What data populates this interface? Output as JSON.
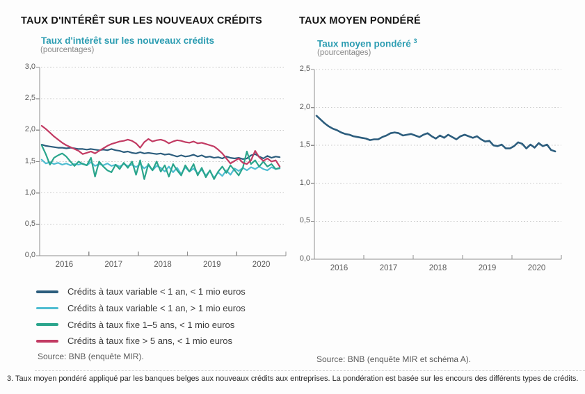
{
  "header": {
    "left_title": "TAUX D'INTÉRÊT SUR LES NOUVEAUX CRÉDITS",
    "right_title": "TAUX MOYEN PONDÉRÉ"
  },
  "left_panel": {
    "subtitle": "Taux d'intérêt sur les nouveaux crédits",
    "unit": "(pourcentages)",
    "source": "Source: BNB (enquête MIR)."
  },
  "right_panel": {
    "subtitle": "Taux moyen pondéré",
    "footnote_ref": "3",
    "unit": "(pourcentages)",
    "source": "Source: BNB (enquête MIR et schéma A)."
  },
  "footnote": "3. Taux moyen pondéré appliqué par les banques belges aux nouveaux crédits aux entreprises. La pondération est basée sur les encours des différents types de crédits.",
  "chart_data": [
    {
      "type": "line",
      "title": "Taux d'intérêt sur les nouveaux crédits",
      "ylabel": "pourcentages",
      "x_unit": "monthly",
      "x_range": "2016-01 to 2020-11",
      "x_years": [
        "2016",
        "2017",
        "2018",
        "2019",
        "2020"
      ],
      "ylim": [
        0,
        3
      ],
      "grid": "dotted-horizontal",
      "legend_position": "below-left",
      "yticks": [
        {
          "label": "3,0",
          "value": 3.0
        },
        {
          "label": "2,5",
          "value": 2.5
        },
        {
          "label": "2,0",
          "value": 2.0
        },
        {
          "label": "1,5",
          "value": 1.5
        },
        {
          "label": "1,0",
          "value": 1.0
        },
        {
          "label": "0,5",
          "value": 0.5
        },
        {
          "label": "0,0",
          "value": 0.0
        }
      ],
      "series": [
        {
          "name": "Crédits à taux variable < 1 an, < 1 mio euros",
          "color": "#2c5d7d",
          "values": [
            1.77,
            1.75,
            1.74,
            1.73,
            1.72,
            1.72,
            1.71,
            1.72,
            1.71,
            1.7,
            1.7,
            1.69,
            1.7,
            1.69,
            1.68,
            1.69,
            1.68,
            1.7,
            1.68,
            1.67,
            1.65,
            1.66,
            1.64,
            1.63,
            1.65,
            1.63,
            1.64,
            1.63,
            1.62,
            1.63,
            1.61,
            1.62,
            1.6,
            1.58,
            1.6,
            1.58,
            1.59,
            1.61,
            1.58,
            1.6,
            1.57,
            1.58,
            1.56,
            1.57,
            1.55,
            1.58,
            1.56,
            1.55,
            1.56,
            1.54,
            1.55,
            1.6,
            1.62,
            1.58,
            1.55,
            1.59,
            1.56,
            1.58,
            1.57
          ]
        },
        {
          "name": "Crédits à taux variable < 1 an, > 1 mio euros",
          "color": "#4fbdd1",
          "values": [
            1.53,
            1.47,
            1.49,
            1.46,
            1.48,
            1.45,
            1.47,
            1.44,
            1.46,
            1.45,
            1.47,
            1.44,
            1.49,
            1.43,
            1.46,
            1.44,
            1.47,
            1.43,
            1.45,
            1.42,
            1.46,
            1.43,
            1.45,
            1.41,
            1.46,
            1.39,
            1.44,
            1.36,
            1.43,
            1.4,
            1.34,
            1.42,
            1.33,
            1.4,
            1.3,
            1.41,
            1.34,
            1.39,
            1.31,
            1.37,
            1.28,
            1.35,
            1.24,
            1.33,
            1.27,
            1.36,
            1.29,
            1.39,
            1.35,
            1.4,
            1.36,
            1.41,
            1.38,
            1.42,
            1.38,
            1.36,
            1.41,
            1.38,
            1.39
          ]
        },
        {
          "name": "Crédits à taux fixe 1–5 ans, < 1 mio euros",
          "color": "#2aa58c",
          "values": [
            1.76,
            1.62,
            1.45,
            1.56,
            1.6,
            1.63,
            1.58,
            1.5,
            1.43,
            1.5,
            1.46,
            1.44,
            1.56,
            1.26,
            1.5,
            1.42,
            1.36,
            1.33,
            1.45,
            1.38,
            1.48,
            1.4,
            1.5,
            1.29,
            1.52,
            1.22,
            1.46,
            1.36,
            1.5,
            1.34,
            1.44,
            1.26,
            1.46,
            1.36,
            1.28,
            1.44,
            1.34,
            1.46,
            1.28,
            1.4,
            1.25,
            1.36,
            1.22,
            1.34,
            1.42,
            1.32,
            1.44,
            1.36,
            1.28,
            1.4,
            1.66,
            1.46,
            1.52,
            1.42,
            1.5,
            1.42,
            1.46,
            1.38,
            1.4
          ]
        },
        {
          "name": "Crédits à taux fixe > 5 ans, < 1 mio euros",
          "color": "#c23b63",
          "values": [
            2.07,
            2.02,
            1.96,
            1.9,
            1.85,
            1.8,
            1.76,
            1.73,
            1.7,
            1.67,
            1.62,
            1.64,
            1.66,
            1.63,
            1.67,
            1.71,
            1.75,
            1.78,
            1.8,
            1.82,
            1.83,
            1.85,
            1.83,
            1.79,
            1.72,
            1.81,
            1.86,
            1.82,
            1.84,
            1.85,
            1.83,
            1.79,
            1.82,
            1.84,
            1.83,
            1.81,
            1.8,
            1.82,
            1.79,
            1.8,
            1.78,
            1.76,
            1.74,
            1.69,
            1.63,
            1.55,
            1.47,
            1.51,
            1.55,
            1.48,
            1.46,
            1.52,
            1.67,
            1.57,
            1.51,
            1.55,
            1.5,
            1.52,
            1.42
          ]
        }
      ]
    },
    {
      "type": "line",
      "title": "Taux moyen pondéré",
      "ylabel": "pourcentages",
      "x_unit": "monthly",
      "x_range": "2016-01 to 2020-11",
      "x_years": [
        "2016",
        "2017",
        "2018",
        "2019",
        "2020"
      ],
      "ylim": [
        0,
        2.5
      ],
      "grid": "dotted-horizontal",
      "legend_position": "none",
      "yticks": [
        {
          "label": "2,5",
          "value": 2.5
        },
        {
          "label": "2,0",
          "value": 2.0
        },
        {
          "label": "1,5",
          "value": 1.5
        },
        {
          "label": "1,0",
          "value": 1.0
        },
        {
          "label": "0,5",
          "value": 0.5
        },
        {
          "label": "0,0",
          "value": 0.0
        }
      ],
      "series": [
        {
          "name": "Taux moyen pondéré",
          "color": "#2c5d7d",
          "values": [
            1.89,
            1.84,
            1.79,
            1.75,
            1.72,
            1.7,
            1.67,
            1.65,
            1.64,
            1.62,
            1.61,
            1.6,
            1.59,
            1.57,
            1.58,
            1.58,
            1.61,
            1.63,
            1.66,
            1.67,
            1.66,
            1.63,
            1.64,
            1.65,
            1.63,
            1.61,
            1.64,
            1.66,
            1.62,
            1.59,
            1.63,
            1.6,
            1.64,
            1.61,
            1.58,
            1.62,
            1.64,
            1.62,
            1.6,
            1.62,
            1.58,
            1.55,
            1.56,
            1.5,
            1.49,
            1.51,
            1.46,
            1.46,
            1.49,
            1.54,
            1.52,
            1.46,
            1.51,
            1.47,
            1.53,
            1.49,
            1.51,
            1.44,
            1.42
          ]
        }
      ]
    }
  ]
}
